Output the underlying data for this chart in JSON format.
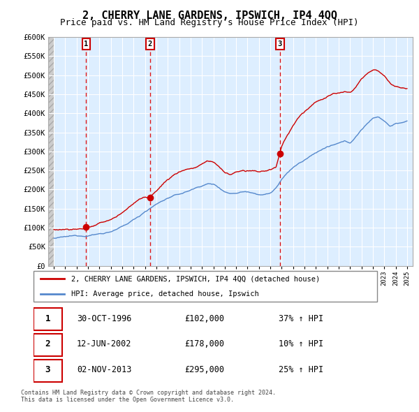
{
  "title": "2, CHERRY LANE GARDENS, IPSWICH, IP4 4QQ",
  "subtitle": "Price paid vs. HM Land Registry's House Price Index (HPI)",
  "ylabel_ticks": [
    "£0",
    "£50K",
    "£100K",
    "£150K",
    "£200K",
    "£250K",
    "£300K",
    "£350K",
    "£400K",
    "£450K",
    "£500K",
    "£550K",
    "£600K"
  ],
  "ytick_values": [
    0,
    50000,
    100000,
    150000,
    200000,
    250000,
    300000,
    350000,
    400000,
    450000,
    500000,
    550000,
    600000
  ],
  "sale_dates": [
    1996.83,
    2002.44,
    2013.84
  ],
  "sale_prices": [
    102000,
    178000,
    295000
  ],
  "sale_labels": [
    "1",
    "2",
    "3"
  ],
  "vline_color": "#dd0000",
  "sale_dot_color": "#cc0000",
  "hpi_line_color": "#5588cc",
  "price_line_color": "#cc0000",
  "legend_label_price": "2, CHERRY LANE GARDENS, IPSWICH, IP4 4QQ (detached house)",
  "legend_label_hpi": "HPI: Average price, detached house, Ipswich",
  "table_data": [
    [
      "1",
      "30-OCT-1996",
      "£102,000",
      "37% ↑ HPI"
    ],
    [
      "2",
      "12-JUN-2002",
      "£178,000",
      "10% ↑ HPI"
    ],
    [
      "3",
      "02-NOV-2013",
      "£295,000",
      "25% ↑ HPI"
    ]
  ],
  "footnote1": "Contains HM Land Registry data © Crown copyright and database right 2024.",
  "footnote2": "This data is licensed under the Open Government Licence v3.0.",
  "xmin": 1993.5,
  "xmax": 2025.5,
  "ymin": 0,
  "ymax": 600000,
  "chart_bg_color": "#ddeeff",
  "grid_color": "#aabbcc",
  "title_fontsize": 11,
  "subtitle_fontsize": 9,
  "hpi_knots_x": [
    1994.0,
    1994.5,
    1995.0,
    1995.5,
    1996.0,
    1996.5,
    1997.0,
    1997.5,
    1998.0,
    1998.5,
    1999.0,
    1999.5,
    2000.0,
    2000.5,
    2001.0,
    2001.5,
    2002.0,
    2002.5,
    2003.0,
    2003.5,
    2004.0,
    2004.5,
    2005.0,
    2005.5,
    2006.0,
    2006.5,
    2007.0,
    2007.5,
    2008.0,
    2008.5,
    2009.0,
    2009.5,
    2010.0,
    2010.5,
    2011.0,
    2011.5,
    2012.0,
    2012.5,
    2013.0,
    2013.5,
    2014.0,
    2014.5,
    2015.0,
    2015.5,
    2016.0,
    2016.5,
    2017.0,
    2017.5,
    2018.0,
    2018.5,
    2019.0,
    2019.5,
    2020.0,
    2020.5,
    2021.0,
    2021.5,
    2022.0,
    2022.5,
    2023.0,
    2023.5,
    2024.0,
    2024.5,
    2025.0
  ],
  "hpi_knots_y": [
    72000,
    73000,
    74000,
    75000,
    76000,
    77000,
    79000,
    82000,
    84000,
    87000,
    91000,
    96000,
    102000,
    110000,
    120000,
    130000,
    143000,
    152000,
    162000,
    170000,
    178000,
    183000,
    187000,
    192000,
    198000,
    204000,
    210000,
    215000,
    214000,
    205000,
    196000,
    191000,
    193000,
    197000,
    198000,
    196000,
    193000,
    193000,
    196000,
    210000,
    230000,
    248000,
    262000,
    272000,
    280000,
    290000,
    300000,
    308000,
    315000,
    318000,
    322000,
    326000,
    322000,
    338000,
    358000,
    372000,
    388000,
    392000,
    382000,
    368000,
    375000,
    378000,
    380000
  ],
  "prop_knots_x": [
    1994.0,
    1994.5,
    1995.0,
    1995.5,
    1996.0,
    1996.5,
    1996.83,
    1997.0,
    1997.5,
    1998.0,
    1998.5,
    1999.0,
    1999.5,
    2000.0,
    2000.5,
    2001.0,
    2001.5,
    2002.0,
    2002.44,
    2002.6,
    2003.0,
    2003.5,
    2004.0,
    2004.5,
    2005.0,
    2005.5,
    2006.0,
    2006.5,
    2007.0,
    2007.5,
    2008.0,
    2008.5,
    2009.0,
    2009.5,
    2010.0,
    2010.5,
    2011.0,
    2011.5,
    2012.0,
    2012.5,
    2013.0,
    2013.5,
    2013.84,
    2014.0,
    2014.5,
    2015.0,
    2015.5,
    2016.0,
    2016.5,
    2017.0,
    2017.5,
    2018.0,
    2018.5,
    2019.0,
    2019.5,
    2020.0,
    2020.5,
    2021.0,
    2021.5,
    2022.0,
    2022.5,
    2023.0,
    2023.5,
    2024.0,
    2024.5,
    2025.0
  ],
  "prop_knots_y": [
    95000,
    96000,
    97000,
    97500,
    98000,
    99000,
    102000,
    104000,
    107000,
    111000,
    116000,
    122000,
    130000,
    140000,
    152000,
    165000,
    178000,
    182000,
    178000,
    185000,
    198000,
    215000,
    228000,
    240000,
    248000,
    255000,
    258000,
    262000,
    270000,
    278000,
    275000,
    262000,
    248000,
    242000,
    248000,
    252000,
    250000,
    248000,
    245000,
    248000,
    252000,
    258000,
    295000,
    312000,
    340000,
    365000,
    385000,
    400000,
    415000,
    428000,
    435000,
    442000,
    448000,
    452000,
    455000,
    450000,
    462000,
    488000,
    502000,
    510000,
    508000,
    498000,
    480000,
    472000,
    468000,
    465000
  ]
}
